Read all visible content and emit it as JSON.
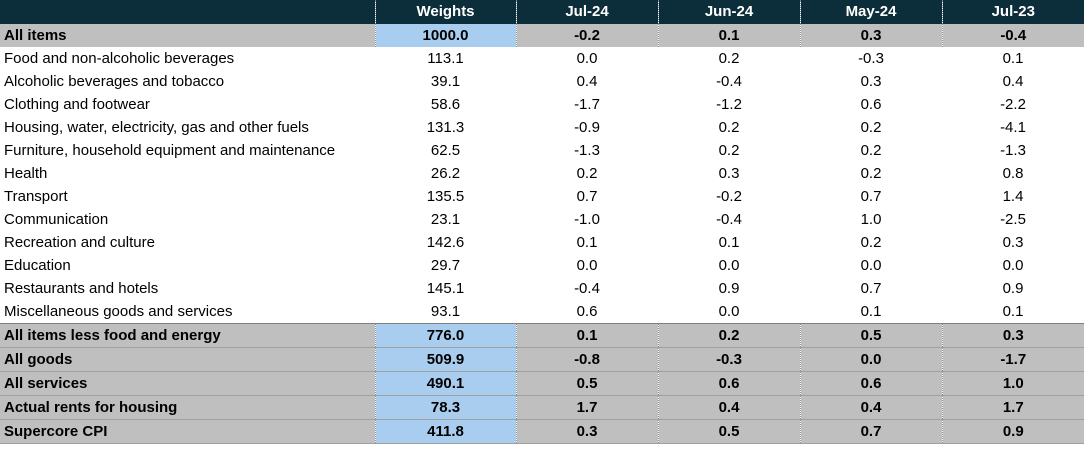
{
  "table": {
    "header": {
      "label": "",
      "columns": [
        "Weights",
        "Jul-24",
        "Jun-24",
        "May-24",
        "Jul-23"
      ]
    },
    "top_rows": [
      {
        "label": "All items",
        "values": [
          "1000.0",
          "-0.2",
          "0.1",
          "0.3",
          "-0.4"
        ]
      }
    ],
    "detail_rows": [
      {
        "label": "Food and non-alcoholic beverages",
        "values": [
          "113.1",
          "0.0",
          "0.2",
          "-0.3",
          "0.1"
        ]
      },
      {
        "label": "Alcoholic beverages and tobacco",
        "values": [
          "39.1",
          "0.4",
          "-0.4",
          "0.3",
          "0.4"
        ]
      },
      {
        "label": "Clothing and footwear",
        "values": [
          "58.6",
          "-1.7",
          "-1.2",
          "0.6",
          "-2.2"
        ]
      },
      {
        "label": "Housing, water, electricity, gas and other fuels",
        "values": [
          "131.3",
          "-0.9",
          "0.2",
          "0.2",
          "-4.1"
        ]
      },
      {
        "label": "Furniture, household equipment and maintenance",
        "values": [
          "62.5",
          "-1.3",
          "0.2",
          "0.2",
          "-1.3"
        ]
      },
      {
        "label": "Health",
        "values": [
          "26.2",
          "0.2",
          "0.3",
          "0.2",
          "0.8"
        ]
      },
      {
        "label": "Transport",
        "values": [
          "135.5",
          "0.7",
          "-0.2",
          "0.7",
          "1.4"
        ]
      },
      {
        "label": "Communication",
        "values": [
          "23.1",
          "-1.0",
          "-0.4",
          "1.0",
          "-2.5"
        ]
      },
      {
        "label": "Recreation and culture",
        "values": [
          "142.6",
          "0.1",
          "0.1",
          "0.2",
          "0.3"
        ]
      },
      {
        "label": "Education",
        "values": [
          "29.7",
          "0.0",
          "0.0",
          "0.0",
          "0.0"
        ]
      },
      {
        "label": "Restaurants and hotels",
        "values": [
          "145.1",
          "-0.4",
          "0.9",
          "0.7",
          "0.9"
        ]
      },
      {
        "label": "Miscellaneous goods and services",
        "values": [
          "93.1",
          "0.6",
          "0.0",
          "0.1",
          "0.1"
        ]
      }
    ],
    "bottom_rows": [
      {
        "label": "All items less food and energy",
        "values": [
          "776.0",
          "0.1",
          "0.2",
          "0.5",
          "0.3"
        ]
      },
      {
        "label": "All goods",
        "values": [
          "509.9",
          "-0.8",
          "-0.3",
          "0.0",
          "-1.7"
        ]
      },
      {
        "label": "All services",
        "values": [
          "490.1",
          "0.5",
          "0.6",
          "0.6",
          "1.0"
        ]
      },
      {
        "label": "Actual rents for housing",
        "values": [
          "78.3",
          "1.7",
          "0.4",
          "0.4",
          "1.7"
        ]
      },
      {
        "label": "Supercore CPI",
        "values": [
          "411.8",
          "0.3",
          "0.5",
          "0.7",
          "0.9"
        ]
      }
    ],
    "colors": {
      "header_bg": "#0c2d3a",
      "header_text": "#ffffff",
      "summary_bg": "#bfbfbf",
      "weight_highlight": "#a9cdee"
    }
  }
}
